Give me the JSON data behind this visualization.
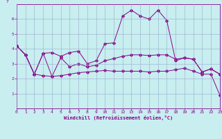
{
  "xlabel": "Windchill (Refroidissement éolien,°C)",
  "bg_color": "#c8eef0",
  "line_color": "#880088",
  "grid_color": "#99aacc",
  "x_values": [
    0,
    1,
    2,
    3,
    4,
    5,
    6,
    7,
    8,
    9,
    10,
    11,
    12,
    13,
    14,
    15,
    16,
    17,
    18,
    19,
    20,
    21,
    22,
    23
  ],
  "line1_y": [
    4.2,
    3.6,
    2.3,
    3.7,
    3.75,
    3.5,
    3.75,
    3.85,
    3.0,
    3.2,
    4.35,
    4.4,
    6.2,
    6.6,
    6.2,
    6.0,
    6.6,
    5.9,
    3.2,
    3.4,
    3.3,
    2.45,
    2.65,
    2.3
  ],
  "line2_y": [
    4.2,
    3.6,
    2.3,
    2.2,
    2.15,
    2.2,
    2.3,
    2.4,
    2.45,
    2.5,
    2.55,
    2.5,
    2.5,
    2.5,
    2.5,
    2.45,
    2.5,
    2.5,
    2.6,
    2.7,
    2.5,
    2.3,
    2.3,
    0.9
  ],
  "line3_y": [
    4.2,
    3.6,
    2.3,
    3.7,
    2.15,
    3.4,
    2.8,
    3.0,
    2.8,
    2.9,
    3.2,
    3.35,
    3.5,
    3.6,
    3.6,
    3.55,
    3.6,
    3.6,
    3.3,
    3.4,
    3.3,
    2.45,
    2.65,
    2.3
  ],
  "xlim": [
    0,
    23
  ],
  "ylim": [
    0,
    7
  ],
  "yticks": [
    1,
    2,
    3,
    4,
    5,
    6
  ],
  "xticks": [
    0,
    1,
    2,
    3,
    4,
    5,
    6,
    7,
    8,
    9,
    10,
    11,
    12,
    13,
    14,
    15,
    16,
    17,
    18,
    19,
    20,
    21,
    22,
    23
  ]
}
